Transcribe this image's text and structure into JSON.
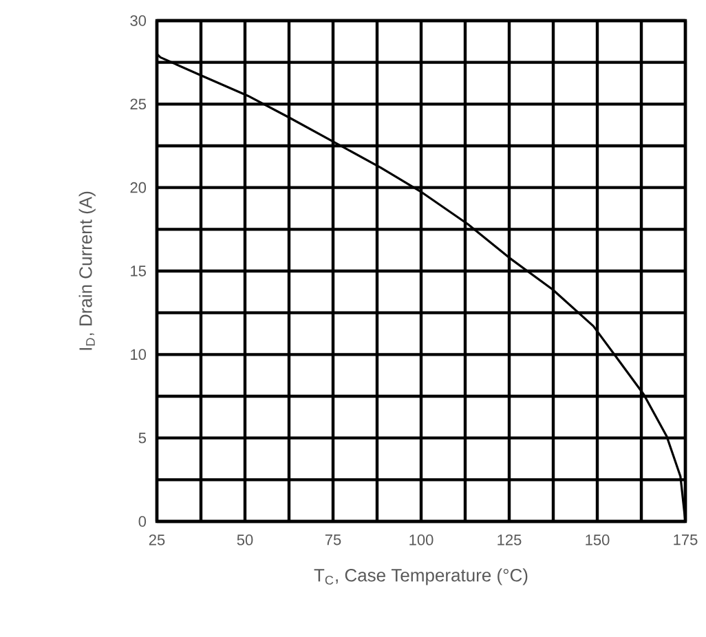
{
  "chart_data": {
    "type": "line",
    "xlabel": "T$_{C}$, Case Temperature (°C)",
    "ylabel": "I$_{D}$, Drain Current (A)",
    "x": [
      25,
      26,
      37.7,
      50.8,
      62.5,
      75.5,
      88.5,
      100.3,
      113.3,
      125,
      137.3,
      148.9,
      156.6,
      163.2,
      169.7,
      173.6,
      175
    ],
    "series": [
      {
        "color": "#000000",
        "values": [
          28,
          27.8,
          26.7,
          25.5,
          24.2,
          22.7,
          21.2,
          19.7,
          17.8,
          15.8,
          13.9,
          11.7,
          9.5,
          7.6,
          5.1,
          2.7,
          0
        ]
      }
    ],
    "xlim": [
      25,
      175
    ],
    "ylim": [
      0,
      30
    ],
    "xticks": [
      25,
      50,
      75,
      100,
      125,
      150,
      175
    ],
    "yticks": [
      0,
      5,
      10,
      15,
      20,
      25,
      30
    ],
    "grid": true,
    "marker": "none",
    "line_style": "solid"
  }
}
